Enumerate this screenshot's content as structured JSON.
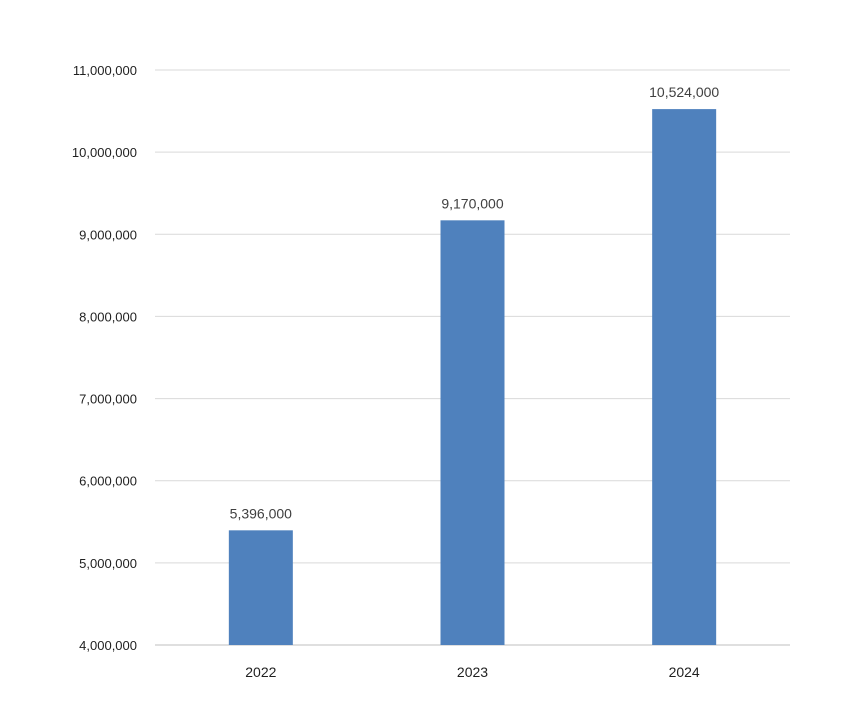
{
  "chart_data": {
    "type": "bar",
    "categories": [
      "2022",
      "2023",
      "2024"
    ],
    "values": [
      5396000,
      9170000,
      10524000
    ],
    "data_labels": [
      "5,396,000",
      "9,170,000",
      "10,524,000"
    ],
    "ylim": [
      4000000,
      11000000
    ],
    "yticks": [
      4000000,
      5000000,
      6000000,
      7000000,
      8000000,
      9000000,
      10000000,
      11000000
    ],
    "ytick_labels": [
      "4,000,000",
      "5,000,000",
      "6,000,000",
      "7,000,000",
      "8,000,000",
      "9,000,000",
      "10,000,000",
      "11,000,000"
    ],
    "grid": true,
    "bar_color": "#4f81bd",
    "title": "",
    "xlabel": "",
    "ylabel": ""
  }
}
